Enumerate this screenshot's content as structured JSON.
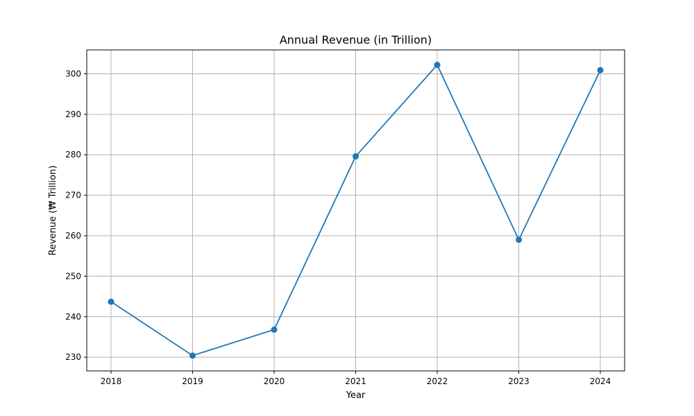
{
  "chart_data": {
    "type": "line",
    "title": "Annual Revenue (in Trillion)",
    "xlabel": "Year",
    "ylabel": "Revenue (₩ Trillion)",
    "categories": [
      "2018",
      "2019",
      "2020",
      "2021",
      "2022",
      "2023",
      "2024"
    ],
    "series": [
      {
        "values": [
          243.7,
          230.4,
          236.8,
          279.6,
          302.2,
          259.0,
          300.9
        ],
        "color": "#1f77b4",
        "marker": "circle"
      }
    ],
    "ylim": [
      226.6,
      305.9
    ],
    "yticks": [
      230,
      240,
      250,
      260,
      270,
      280,
      290,
      300
    ],
    "grid": true
  }
}
